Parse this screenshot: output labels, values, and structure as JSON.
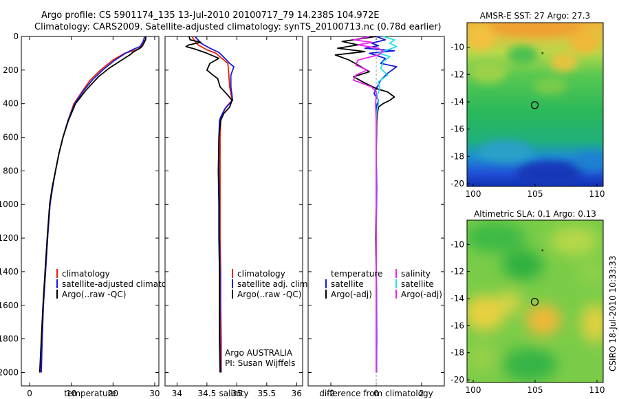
{
  "header": {
    "title_line1": "Argo profile: CS 5901174_135 13-Jul-2010 20100717_79 14.238S 104.972E",
    "title_line2": "Climatology: CARS2009. Satellite-adjusted climatology: synTS_20100713.nc (0.78d earlier)"
  },
  "side_label": "CSIRO 18-Jul-2010 10:33:33",
  "colors": {
    "climatology": "#ee2200",
    "satellite": "#1a1adc",
    "argo": "#000000",
    "argo_sal": "#ee22ee",
    "satellite_sal": "#22e0ee"
  },
  "chart_data": [
    {
      "id": "temperature",
      "type": "line",
      "xlabel": "temperature",
      "xlim": [
        -2,
        31
      ],
      "ylim": [
        0,
        2080
      ],
      "xticks": [
        0,
        10,
        20,
        30
      ],
      "yticks": [
        0,
        200,
        400,
        600,
        800,
        1000,
        1200,
        1400,
        1600,
        1800,
        2000
      ],
      "legend": [
        "climatology",
        "satellite-adjusted climatology",
        "Argo(..raw -QC)"
      ],
      "series": [
        {
          "name": "climatology",
          "color_key": "climatology",
          "points": [
            [
              27.5,
              0
            ],
            [
              27.4,
              30
            ],
            [
              27.0,
              60
            ],
            [
              25.6,
              80
            ],
            [
              22.8,
              100
            ],
            [
              20,
              140
            ],
            [
              17,
              200
            ],
            [
              14.5,
              260
            ],
            [
              12.8,
              320
            ],
            [
              10.6,
              400
            ],
            [
              9.2,
              500
            ],
            [
              8.0,
              600
            ],
            [
              7.0,
              700
            ],
            [
              6.2,
              800
            ],
            [
              5.4,
              900
            ],
            [
              4.8,
              1000
            ],
            [
              4.3,
              1200
            ],
            [
              3.8,
              1400
            ],
            [
              3.3,
              1600
            ],
            [
              3.0,
              1800
            ],
            [
              2.7,
              2000
            ]
          ]
        },
        {
          "name": "satellite-adjusted climatology",
          "color_key": "satellite",
          "points": [
            [
              27.6,
              0
            ],
            [
              27.3,
              25
            ],
            [
              26.5,
              60
            ],
            [
              25,
              75
            ],
            [
              23,
              100
            ],
            [
              20.5,
              140
            ],
            [
              17.5,
              200
            ],
            [
              15,
              260
            ],
            [
              13,
              320
            ],
            [
              10.8,
              400
            ],
            [
              9.2,
              500
            ],
            [
              8.0,
              600
            ],
            [
              7.0,
              700
            ],
            [
              6.2,
              800
            ],
            [
              5.5,
              900
            ],
            [
              4.9,
              1000
            ],
            [
              4.3,
              1200
            ],
            [
              3.8,
              1400
            ],
            [
              3.3,
              1600
            ],
            [
              3.0,
              1800
            ],
            [
              2.8,
              2000
            ]
          ]
        },
        {
          "name": "Argo(..raw -QC)",
          "color_key": "argo",
          "points": [
            [
              27.9,
              0
            ],
            [
              27.8,
              20
            ],
            [
              27.2,
              50
            ],
            [
              26.5,
              70
            ],
            [
              25,
              90
            ],
            [
              24,
              110
            ],
            [
              21.5,
              150
            ],
            [
              19,
              190
            ],
            [
              16.5,
              240
            ],
            [
              13.5,
              320
            ],
            [
              11,
              400
            ],
            [
              9.3,
              500
            ],
            [
              8.0,
              600
            ],
            [
              7.0,
              700
            ],
            [
              6.2,
              800
            ],
            [
              5.4,
              900
            ],
            [
              4.8,
              1000
            ],
            [
              4.2,
              1200
            ],
            [
              3.7,
              1400
            ],
            [
              3.2,
              1600
            ],
            [
              2.8,
              1800
            ],
            [
              2.4,
              2000
            ]
          ]
        }
      ]
    },
    {
      "id": "salinity",
      "type": "line",
      "xlabel": "salinity",
      "xlim": [
        33.8,
        36.1
      ],
      "ylim": [
        0,
        2080
      ],
      "xticks": [
        34,
        34.5,
        35,
        35.5,
        36
      ],
      "legend": [
        "climatology",
        "satellite adj. clim.",
        "Argo(..raw -QC)"
      ],
      "annotation": [
        "Argo AUSTRALIA",
        "PI: Susan Wijffels"
      ],
      "series": [
        {
          "name": "climatology",
          "color_key": "climatology",
          "points": [
            [
              34.25,
              0
            ],
            [
              34.3,
              30
            ],
            [
              34.35,
              50
            ],
            [
              34.5,
              80
            ],
            [
              34.65,
              100
            ],
            [
              34.75,
              130
            ],
            [
              34.85,
              160
            ],
            [
              34.86,
              200
            ],
            [
              34.88,
              300
            ],
            [
              34.92,
              380
            ],
            [
              34.82,
              420
            ],
            [
              34.75,
              470
            ],
            [
              34.73,
              500
            ],
            [
              34.72,
              600
            ],
            [
              34.72,
              800
            ],
            [
              34.72,
              1000
            ],
            [
              34.72,
              1200
            ],
            [
              34.73,
              1400
            ],
            [
              34.73,
              1600
            ],
            [
              34.74,
              1800
            ],
            [
              34.74,
              2000
            ]
          ]
        },
        {
          "name": "satellite adj. clim.",
          "color_key": "satellite",
          "points": [
            [
              34.3,
              0
            ],
            [
              34.35,
              20
            ],
            [
              34.4,
              40
            ],
            [
              34.55,
              70
            ],
            [
              34.7,
              95
            ],
            [
              34.8,
              130
            ],
            [
              34.88,
              160
            ],
            [
              34.95,
              180
            ],
            [
              34.9,
              230
            ],
            [
              34.9,
              300
            ],
            [
              34.93,
              380
            ],
            [
              34.8,
              430
            ],
            [
              34.73,
              480
            ],
            [
              34.71,
              500
            ],
            [
              34.7,
              600
            ],
            [
              34.7,
              800
            ],
            [
              34.71,
              1000
            ],
            [
              34.71,
              1200
            ],
            [
              34.72,
              1400
            ],
            [
              34.72,
              1600
            ],
            [
              34.72,
              1800
            ],
            [
              34.73,
              2000
            ]
          ]
        },
        {
          "name": "Argo(..raw -QC)",
          "color_key": "argo",
          "points": [
            [
              34.2,
              0
            ],
            [
              34.22,
              20
            ],
            [
              34.4,
              35
            ],
            [
              34.2,
              50
            ],
            [
              34.15,
              60
            ],
            [
              34.3,
              75
            ],
            [
              34.5,
              100
            ],
            [
              34.7,
              130
            ],
            [
              34.55,
              160
            ],
            [
              34.5,
              200
            ],
            [
              34.6,
              230
            ],
            [
              34.68,
              250
            ],
            [
              34.72,
              300
            ],
            [
              34.8,
              330
            ],
            [
              34.85,
              350
            ],
            [
              34.92,
              380
            ],
            [
              34.88,
              420
            ],
            [
              34.78,
              460
            ],
            [
              34.73,
              500
            ],
            [
              34.7,
              600
            ],
            [
              34.69,
              800
            ],
            [
              34.7,
              1000
            ],
            [
              34.7,
              1200
            ],
            [
              34.71,
              1400
            ],
            [
              34.71,
              1600
            ],
            [
              34.71,
              1800
            ],
            [
              34.72,
              2000
            ]
          ]
        }
      ]
    },
    {
      "id": "difference",
      "type": "line",
      "xlabel": "difference from climatology",
      "xlim": [
        -3,
        3
      ],
      "ylim": [
        0,
        2080
      ],
      "xticks": [
        -2,
        0,
        2
      ],
      "legend_left": [
        "temperature",
        "satellite",
        "Argo(-adj)"
      ],
      "legend_right": [
        "salinity",
        "satellite",
        "Argo(-adj)"
      ],
      "series": [
        {
          "name": "temperature satellite",
          "color_key": "satellite",
          "points": [
            [
              0,
              0
            ],
            [
              0.4,
              20
            ],
            [
              -0.2,
              40
            ],
            [
              0.1,
              55
            ],
            [
              -0.5,
              70
            ],
            [
              0.8,
              85
            ],
            [
              -0.3,
              100
            ],
            [
              0.4,
              130
            ],
            [
              0.2,
              160
            ],
            [
              0.9,
              180
            ],
            [
              0.5,
              220
            ],
            [
              0.2,
              260
            ],
            [
              0.05,
              300
            ],
            [
              -0.1,
              340
            ],
            [
              0.1,
              380
            ],
            [
              0,
              420
            ],
            [
              0.02,
              500
            ],
            [
              0,
              700
            ],
            [
              0.02,
              900
            ],
            [
              0,
              1200
            ],
            [
              0.01,
              1500
            ],
            [
              0.02,
              1800
            ],
            [
              0.01,
              2000
            ]
          ]
        },
        {
          "name": "temperature Argo(-adj)",
          "color_key": "argo",
          "points": [
            [
              0,
              0
            ],
            [
              -1.5,
              30
            ],
            [
              -0.8,
              50
            ],
            [
              -1.7,
              70
            ],
            [
              -0.5,
              90
            ],
            [
              -1.8,
              110
            ],
            [
              -1.2,
              140
            ],
            [
              -0.8,
              170
            ],
            [
              -0.3,
              210
            ],
            [
              -1.0,
              240
            ],
            [
              -0.6,
              270
            ],
            [
              0,
              310
            ],
            [
              0.5,
              330
            ],
            [
              0.8,
              360
            ],
            [
              0.6,
              380
            ],
            [
              0.3,
              400
            ],
            [
              0.1,
              420
            ],
            [
              0.05,
              460
            ],
            [
              0.02,
              500
            ],
            [
              0,
              700
            ],
            [
              0.01,
              900
            ],
            [
              -0.02,
              1200
            ],
            [
              0.01,
              1500
            ],
            [
              0,
              1800
            ],
            [
              0.01,
              2000
            ]
          ]
        },
        {
          "name": "salinity satellite",
          "color_key": "satellite_sal",
          "points": [
            [
              0.3,
              0
            ],
            [
              0.8,
              20
            ],
            [
              0.6,
              40
            ],
            [
              0.9,
              60
            ],
            [
              0.5,
              80
            ],
            [
              0.1,
              100
            ],
            [
              0.6,
              120
            ],
            [
              0.3,
              150
            ],
            [
              0.2,
              190
            ],
            [
              0.5,
              230
            ],
            [
              0.1,
              270
            ],
            [
              0.15,
              310
            ],
            [
              0.05,
              350
            ],
            [
              0.1,
              400
            ],
            [
              0.02,
              450
            ],
            [
              0,
              500
            ],
            [
              0,
              700
            ],
            [
              0,
              1000
            ],
            [
              0,
              1400
            ],
            [
              0,
              1800
            ],
            [
              0,
              2000
            ]
          ]
        },
        {
          "name": "salinity Argo(-adj)",
          "color_key": "argo_sal",
          "points": [
            [
              -0.3,
              0
            ],
            [
              -1.0,
              20
            ],
            [
              -0.2,
              35
            ],
            [
              -0.8,
              50
            ],
            [
              0.1,
              70
            ],
            [
              0.3,
              90
            ],
            [
              0.1,
              110
            ],
            [
              -0.8,
              140
            ],
            [
              -0.9,
              170
            ],
            [
              -0.4,
              200
            ],
            [
              -0.9,
              230
            ],
            [
              -1.0,
              260
            ],
            [
              -0.6,
              280
            ],
            [
              -0.2,
              300
            ],
            [
              0,
              330
            ],
            [
              0,
              360
            ],
            [
              -0.03,
              400
            ],
            [
              0,
              500
            ],
            [
              0,
              700
            ],
            [
              0,
              1000
            ],
            [
              0,
              1400
            ],
            [
              0,
              1800
            ],
            [
              0,
              2000
            ]
          ]
        }
      ]
    },
    {
      "id": "sst_map",
      "type": "heatmap",
      "title": "AMSR-E SST: 27  Argo: 27.3",
      "xlim": [
        99.5,
        110.5
      ],
      "ylim": [
        -20.2,
        -8.2
      ],
      "xticks": [
        100,
        105,
        110
      ],
      "yticks": [
        -10,
        -12,
        -14,
        -16,
        -18,
        -20
      ],
      "float_position": [
        104.972,
        -14.238
      ],
      "marker_position": [
        105.6,
        -10.5
      ]
    },
    {
      "id": "sla_map",
      "type": "heatmap",
      "title": "Altimetric SLA: 0.1  Argo: 0.13",
      "xlim": [
        99.5,
        110.5
      ],
      "ylim": [
        -20.2,
        -8.2
      ],
      "xticks": [
        100,
        105,
        110
      ],
      "yticks": [
        -10,
        -12,
        -14,
        -16,
        -18,
        -20
      ],
      "float_position": [
        104.972,
        -14.238
      ],
      "marker_position": [
        105.6,
        -10.5
      ]
    }
  ]
}
